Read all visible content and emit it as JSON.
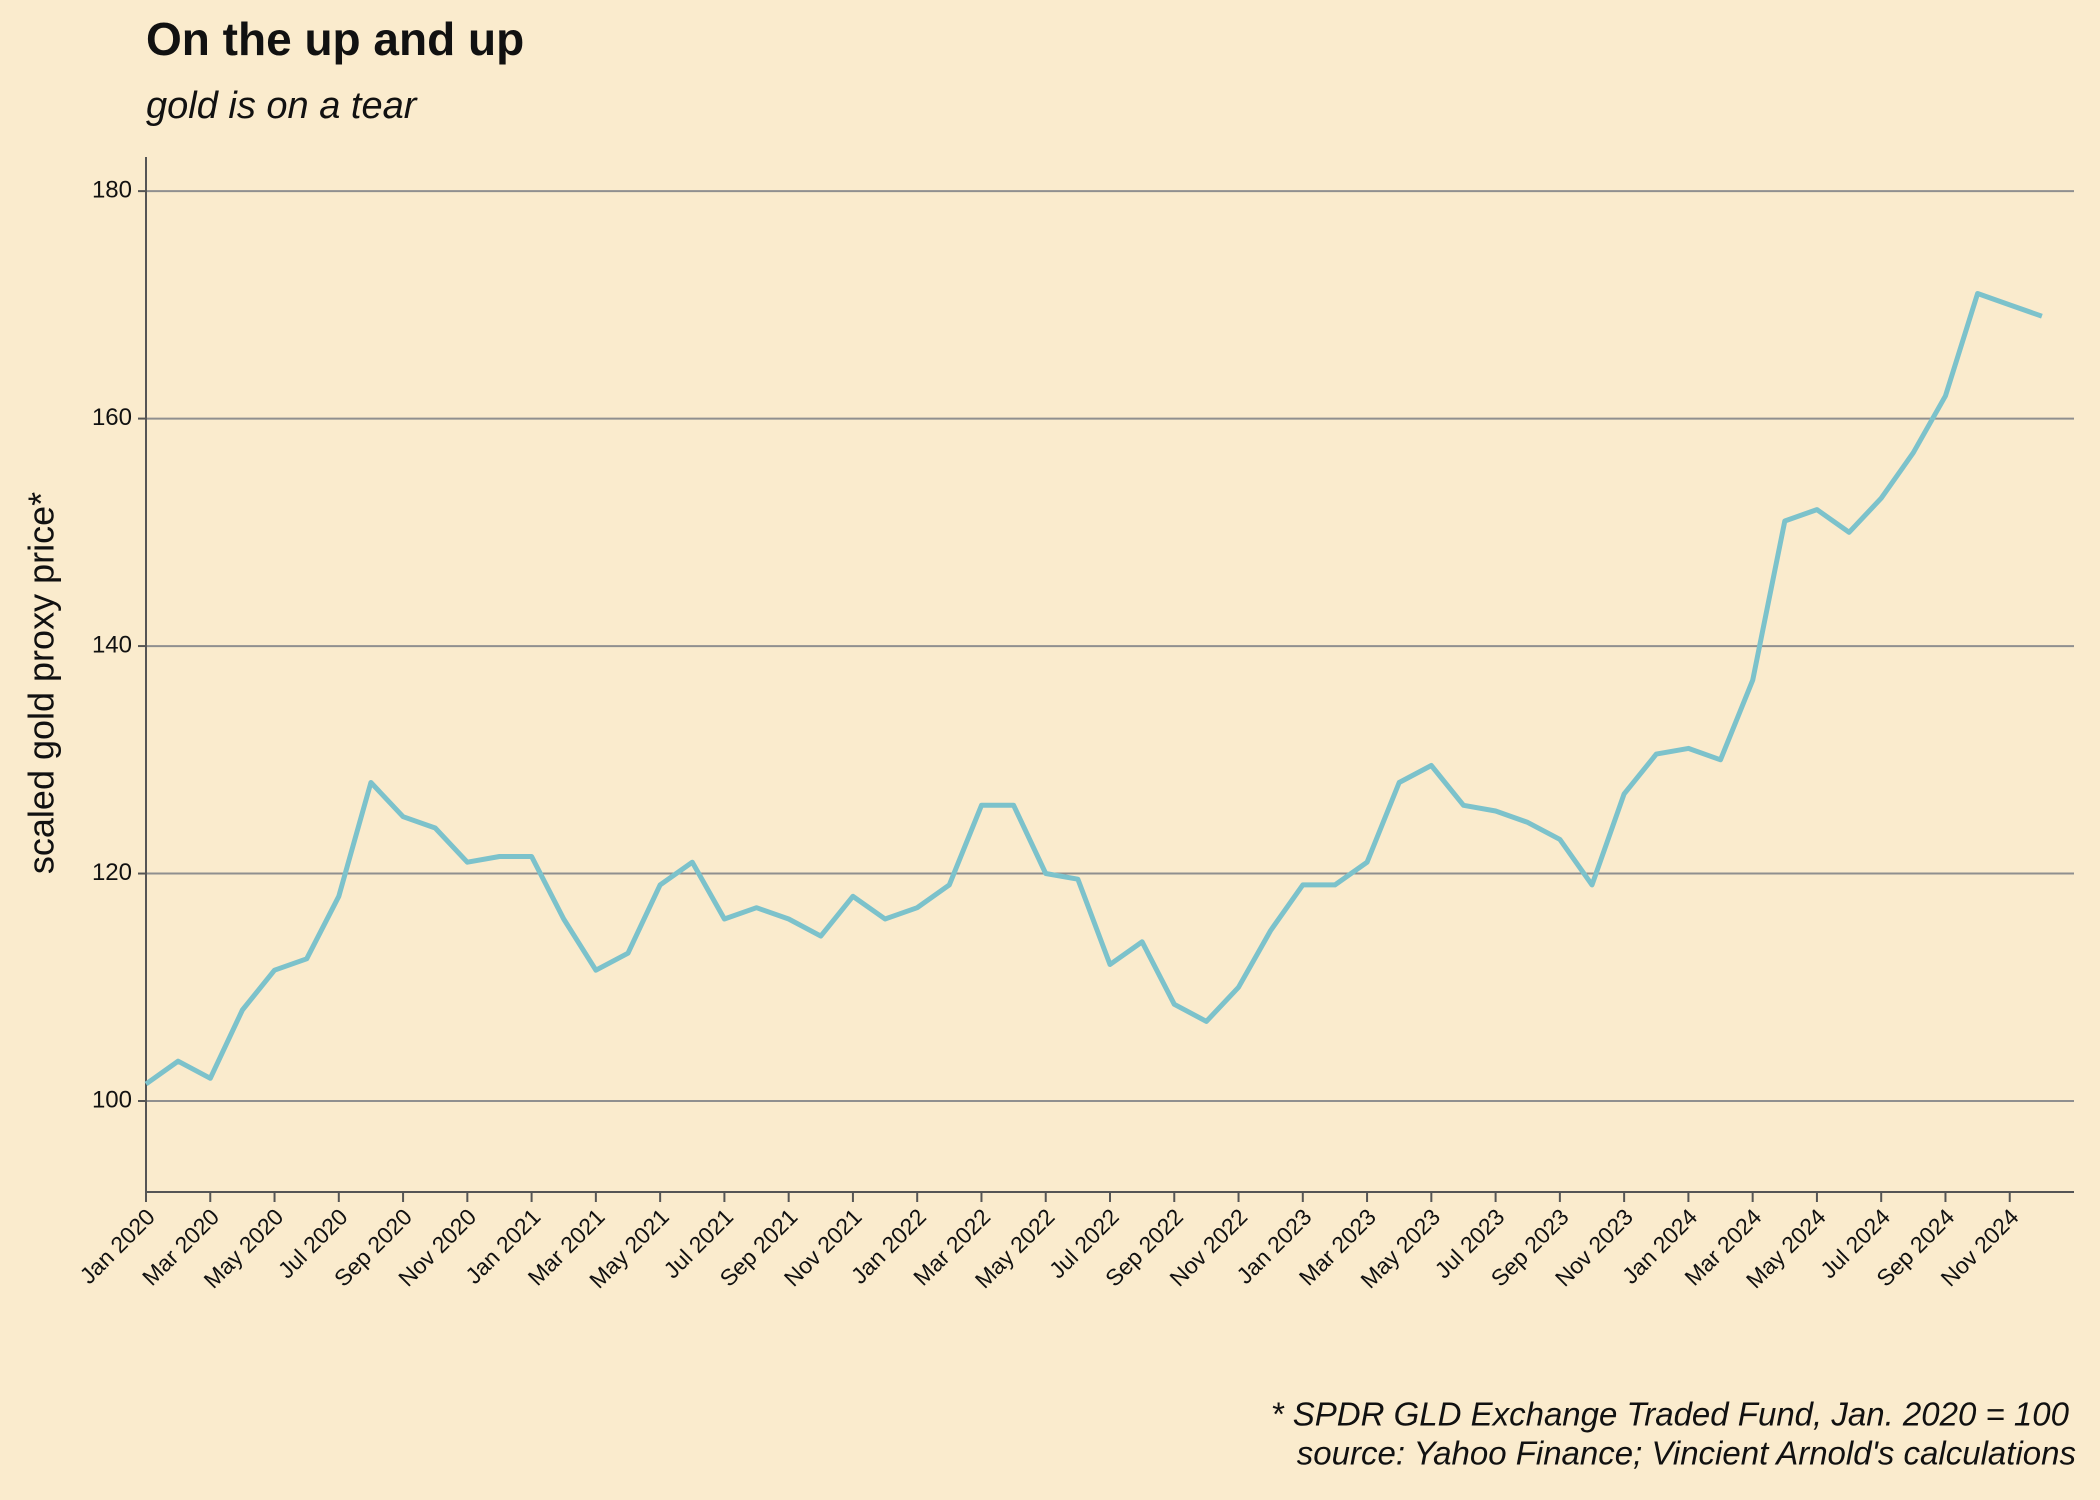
{
  "chart_data": {
    "type": "line",
    "title": "On the up and up",
    "subtitle": "gold is on a tear",
    "y_label": "scaled gold proxy price*",
    "caption": [
      "* SPDR GLD Exchange Traded Fund, Jan. 2020 = 100",
      "source: Yahoo Finance; Vincient Arnold's calculations"
    ],
    "x": [
      "2020-01",
      "2020-02",
      "2020-03",
      "2020-04",
      "2020-05",
      "2020-06",
      "2020-07",
      "2020-08",
      "2020-09",
      "2020-10",
      "2020-11",
      "2020-12",
      "2021-01",
      "2021-02",
      "2021-03",
      "2021-04",
      "2021-05",
      "2021-06",
      "2021-07",
      "2021-08",
      "2021-09",
      "2021-10",
      "2021-11",
      "2021-12",
      "2022-01",
      "2022-02",
      "2022-03",
      "2022-04",
      "2022-05",
      "2022-06",
      "2022-07",
      "2022-08",
      "2022-09",
      "2022-10",
      "2022-11",
      "2022-12",
      "2023-01",
      "2023-02",
      "2023-03",
      "2023-04",
      "2023-05",
      "2023-06",
      "2023-07",
      "2023-08",
      "2023-09",
      "2023-10",
      "2023-11",
      "2023-12",
      "2024-01",
      "2024-02",
      "2024-03",
      "2024-04",
      "2024-05",
      "2024-06",
      "2024-07",
      "2024-08",
      "2024-09",
      "2024-10",
      "2024-11",
      "2024-12"
    ],
    "series": [
      {
        "name": "GLD",
        "color": "#7cc2cb",
        "values": [
          101.5,
          103.5,
          102,
          108,
          111.5,
          112.5,
          118,
          128,
          125,
          124,
          121,
          121.5,
          121.5,
          116,
          111.5,
          113,
          119,
          121,
          116,
          117,
          116,
          114.5,
          118,
          116,
          117,
          119,
          126,
          126,
          120,
          119.5,
          112,
          114,
          108.5,
          107,
          110,
          115,
          119,
          119,
          121,
          128,
          129.5,
          126,
          125.5,
          124.5,
          123,
          119,
          127,
          130.5,
          131,
          130,
          137,
          151,
          152,
          150,
          153,
          157,
          162,
          171,
          170,
          169
        ]
      }
    ],
    "xlim": [
      "2020-01",
      "2025-01"
    ],
    "xticks": [
      {
        "value": "2020-01",
        "label": "Jan 2020"
      },
      {
        "value": "2020-03",
        "label": "Mar 2020"
      },
      {
        "value": "2020-05",
        "label": "May 2020"
      },
      {
        "value": "2020-07",
        "label": "Jul 2020"
      },
      {
        "value": "2020-09",
        "label": "Sep 2020"
      },
      {
        "value": "2020-11",
        "label": "Nov 2020"
      },
      {
        "value": "2021-01",
        "label": "Jan 2021"
      },
      {
        "value": "2021-03",
        "label": "Mar 2021"
      },
      {
        "value": "2021-05",
        "label": "May 2021"
      },
      {
        "value": "2021-07",
        "label": "Jul 2021"
      },
      {
        "value": "2021-09",
        "label": "Sep 2021"
      },
      {
        "value": "2021-11",
        "label": "Nov 2021"
      },
      {
        "value": "2022-01",
        "label": "Jan 2022"
      },
      {
        "value": "2022-03",
        "label": "Mar 2022"
      },
      {
        "value": "2022-05",
        "label": "May 2022"
      },
      {
        "value": "2022-07",
        "label": "Jul 2022"
      },
      {
        "value": "2022-09",
        "label": "Sep 2022"
      },
      {
        "value": "2022-11",
        "label": "Nov 2022"
      },
      {
        "value": "2023-01",
        "label": "Jan 2023"
      },
      {
        "value": "2023-03",
        "label": "Mar 2023"
      },
      {
        "value": "2023-05",
        "label": "May 2023"
      },
      {
        "value": "2023-07",
        "label": "Jul 2023"
      },
      {
        "value": "2023-09",
        "label": "Sep 2023"
      },
      {
        "value": "2023-11",
        "label": "Nov 2023"
      },
      {
        "value": "2024-01",
        "label": "Jan 2024"
      },
      {
        "value": "2024-03",
        "label": "Mar 2024"
      },
      {
        "value": "2024-05",
        "label": "May 2024"
      },
      {
        "value": "2024-07",
        "label": "Jul 2024"
      },
      {
        "value": "2024-09",
        "label": "Sep 2024"
      },
      {
        "value": "2024-11",
        "label": "Nov 2024"
      }
    ],
    "ylim": [
      92,
      183
    ],
    "yticks": [
      100,
      120,
      140,
      160,
      180
    ],
    "grid": true
  }
}
